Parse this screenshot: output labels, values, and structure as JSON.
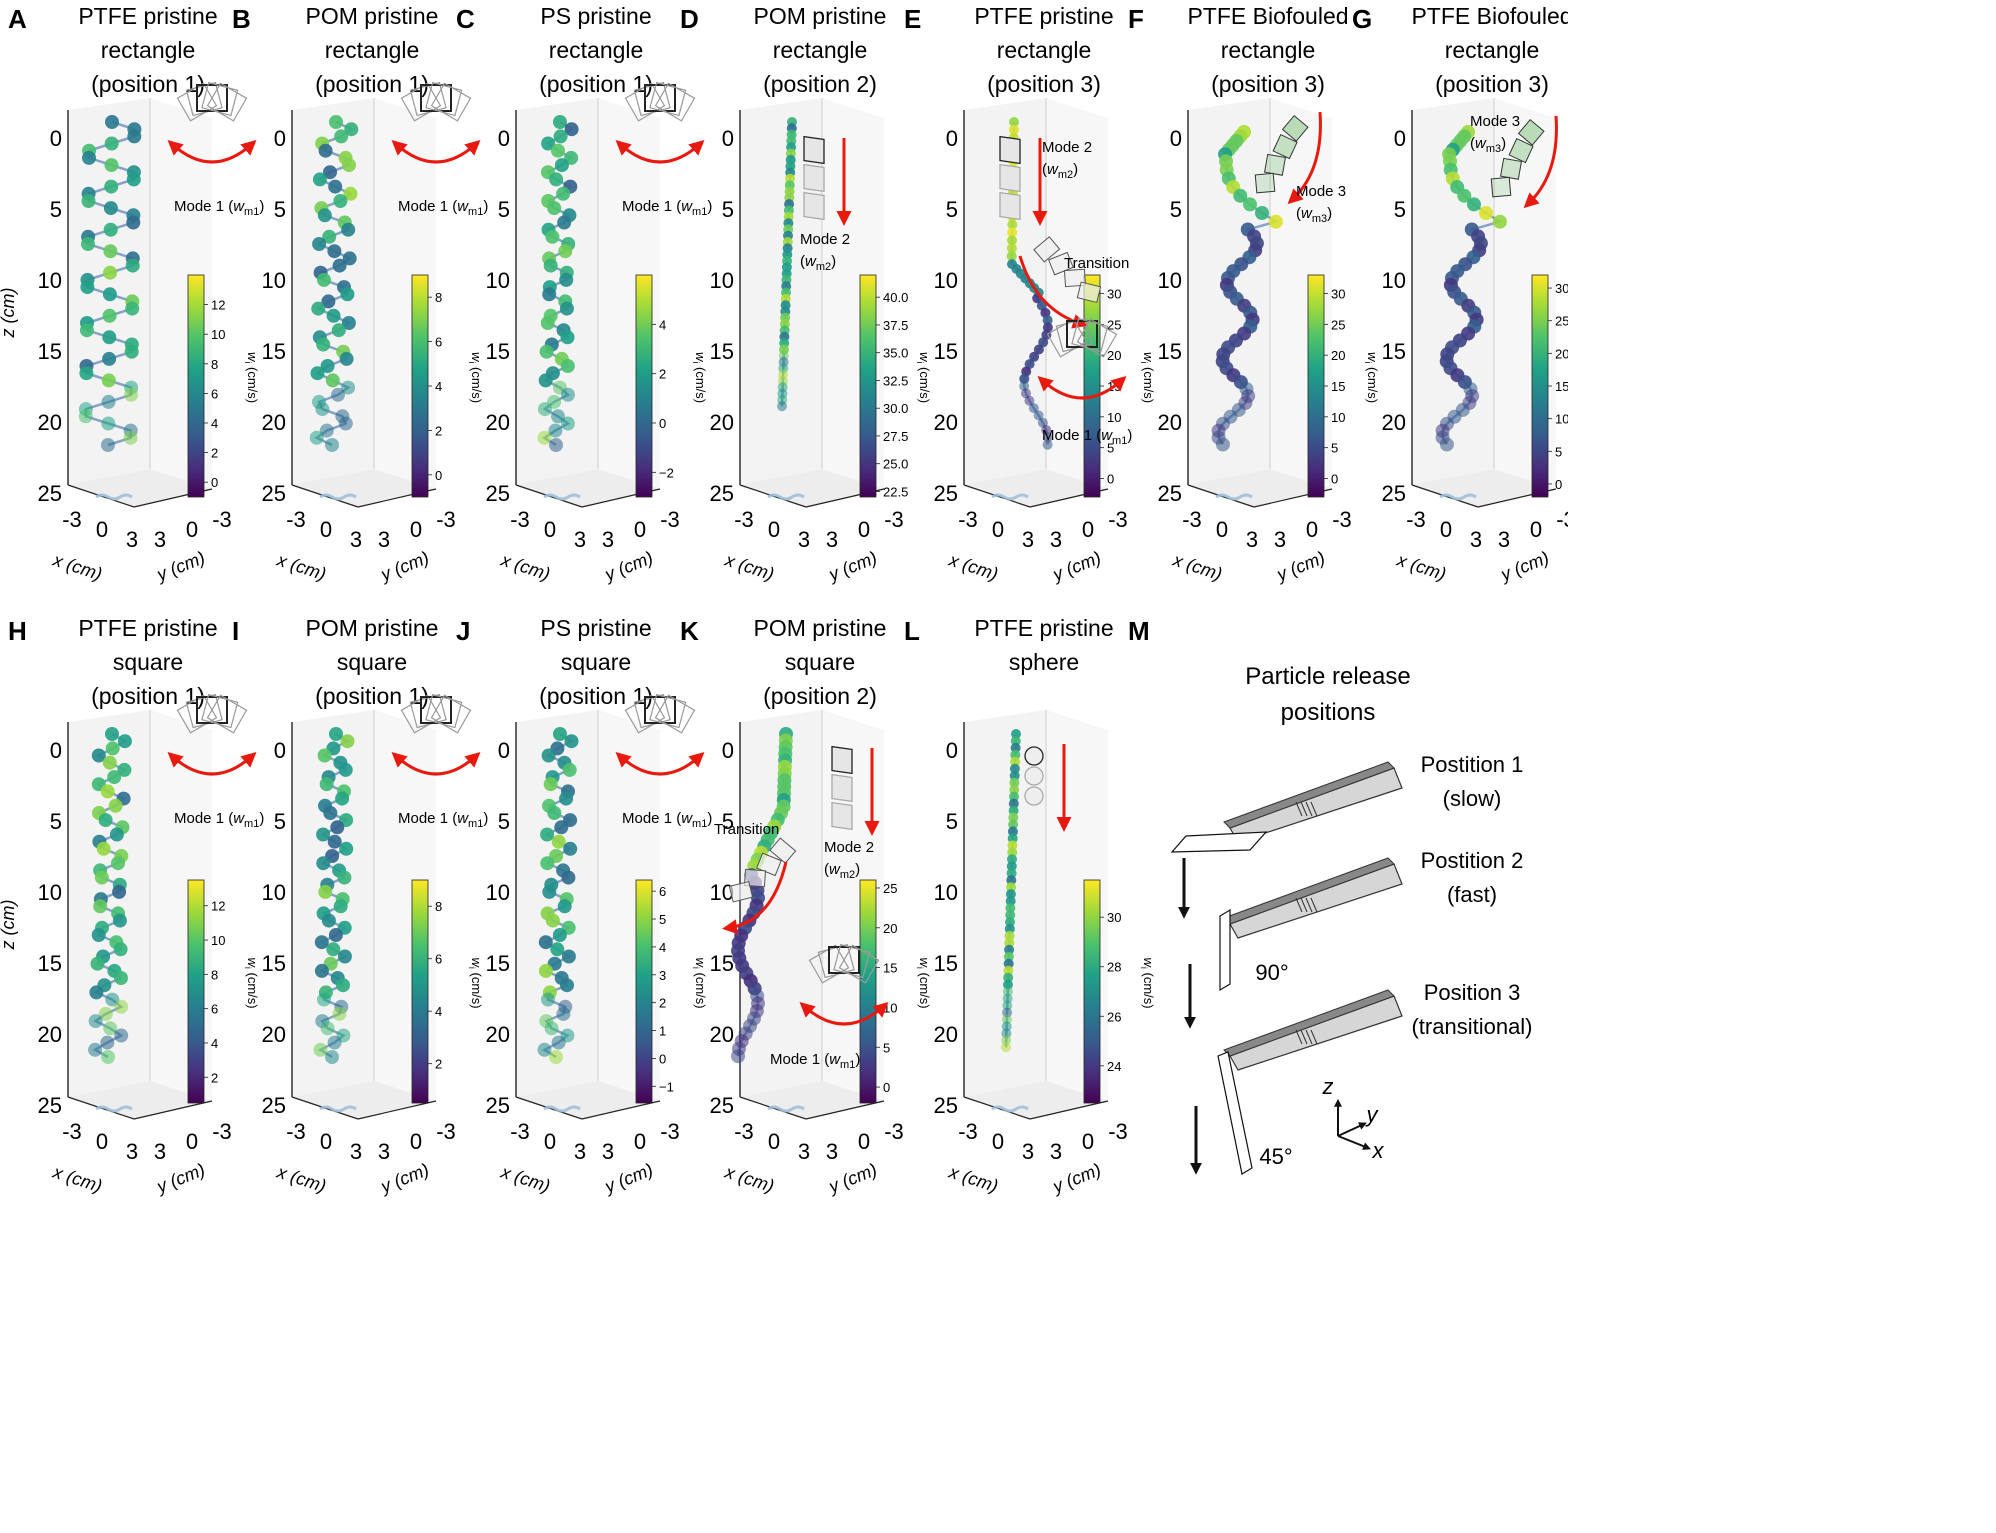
{
  "panels": [
    {
      "id": "A",
      "title": [
        "PTFE pristine",
        "rectangle",
        "(position 1)"
      ],
      "cb_ticks": [
        "12",
        "10",
        "8",
        "6",
        "4",
        "2",
        "0"
      ],
      "cb_min": -1,
      "cb_max": 14,
      "annotations": [
        {
          "text": "Mode 1 (",
          "sym": "w",
          "sub": "m1",
          "close": ")",
          "icon": "swing"
        }
      ],
      "traj": "helix",
      "amp": 1,
      "turns": 7.5
    },
    {
      "id": "B",
      "title": [
        "POM pristine",
        "rectangle",
        "(position 1)"
      ],
      "cb_ticks": [
        "8",
        "6",
        "4",
        "2",
        "0"
      ],
      "cb_min": -1,
      "cb_max": 9,
      "annotations": [
        {
          "text": "Mode 1 (",
          "sym": "w",
          "sub": "m1",
          "close": ")",
          "icon": "swing"
        }
      ],
      "traj": "helix",
      "amp": 0.6,
      "turns": 10
    },
    {
      "id": "C",
      "title": [
        "PS pristine",
        "rectangle",
        "(position 1)"
      ],
      "cb_ticks": [
        "4",
        "2",
        "0",
        "−2"
      ],
      "cb_min": -3,
      "cb_max": 6,
      "annotations": [
        {
          "text": "Mode 1 (",
          "sym": "w",
          "sub": "m1",
          "close": ")",
          "icon": "swing"
        }
      ],
      "traj": "helix",
      "amp": 0.45,
      "turns": 11
    },
    {
      "id": "D",
      "title": [
        "POM pristine",
        "rectangle",
        "(position 2)"
      ],
      "cb_ticks": [
        "40.0",
        "37.5",
        "35.0",
        "32.5",
        "30.0",
        "27.5",
        "25.0",
        "22.5"
      ],
      "cb_min": 22,
      "cb_max": 42,
      "annotations": [
        {
          "text": "Mode 2",
          "sym": "w",
          "sub": "m2",
          "icon": "fall"
        }
      ],
      "traj": "line"
    },
    {
      "id": "E",
      "title": [
        "PTFE pristine",
        "rectangle",
        "(position 3)"
      ],
      "cb_ticks": [
        "30",
        "25",
        "20",
        "15",
        "10",
        "5",
        "0"
      ],
      "cb_min": -3,
      "cb_max": 33,
      "annotations": [
        {
          "text": "Mode 2",
          "sym": "w",
          "sub": "m2",
          "icon": "fall"
        },
        {
          "text": "Transition"
        },
        {
          "text": "Mode 1 (",
          "sym": "w",
          "sub": "m1",
          "close": ")",
          "icon": "swing"
        }
      ],
      "traj": "mixed"
    },
    {
      "id": "F",
      "title": [
        "PTFE Biofouled",
        "rectangle",
        "(position 3)"
      ],
      "cb_ticks": [
        "30",
        "25",
        "20",
        "15",
        "10",
        "5",
        "0"
      ],
      "cb_min": -3,
      "cb_max": 33,
      "annotations": [
        {
          "text": "Mode 3",
          "sym": "w",
          "sub": "m3",
          "icon": "tumble"
        }
      ],
      "traj": "bio"
    },
    {
      "id": "G",
      "title": [
        "PTFE Biofouled",
        "rectangle",
        "(position 3)"
      ],
      "cb_ticks": [
        "30",
        "25",
        "20",
        "15",
        "10",
        "5",
        "0"
      ],
      "cb_min": -2,
      "cb_max": 32,
      "annotations": [
        {
          "text": "Mode 3",
          "sym": "w",
          "sub": "m3",
          "icon": "tumble"
        }
      ],
      "traj": "bio"
    },
    {
      "id": "H",
      "title": [
        "PTFE pristine",
        "square",
        "(position 1)"
      ],
      "cb_ticks": [
        "12",
        "10",
        "8",
        "6",
        "4",
        "2"
      ],
      "cb_min": 0.5,
      "cb_max": 13.5,
      "annotations": [
        {
          "text": "Mode 1 (",
          "sym": "w",
          "sub": "m1",
          "close": ")",
          "icon": "swing"
        }
      ],
      "traj": "helix",
      "amp": 0.5,
      "turns": 11
    },
    {
      "id": "I",
      "title": [
        "POM pristine",
        "square",
        "(position 1)"
      ],
      "cb_ticks": [
        "8",
        "6",
        "4",
        "2"
      ],
      "cb_min": 0.5,
      "cb_max": 9,
      "annotations": [
        {
          "text": "Mode 1 (",
          "sym": "w",
          "sub": "m1",
          "close": ")",
          "icon": "swing"
        }
      ],
      "traj": "helix",
      "amp": 0.45,
      "turns": 12
    },
    {
      "id": "J",
      "title": [
        "PS pristine",
        "square",
        "(position 1)"
      ],
      "cb_ticks": [
        "6",
        "5",
        "4",
        "3",
        "2",
        "1",
        "0",
        "−1"
      ],
      "cb_min": -1.6,
      "cb_max": 6.4,
      "annotations": [
        {
          "text": "Mode 1 (",
          "sym": "w",
          "sub": "m1",
          "close": ")",
          "icon": "swing"
        }
      ],
      "traj": "helix",
      "amp": 0.45,
      "turns": 12
    },
    {
      "id": "K",
      "title": [
        "POM pristine",
        "square",
        "(position 2)"
      ],
      "cb_ticks": [
        "25",
        "20",
        "15",
        "10",
        "5",
        "0"
      ],
      "cb_min": -2,
      "cb_max": 26,
      "annotations": [
        {
          "text": "Transition"
        },
        {
          "text": "Mode 2",
          "sym": "w",
          "sub": "m2",
          "icon": "fall"
        },
        {
          "text": "Mode 1 (",
          "sym": "w",
          "sub": "m1",
          "close": ")",
          "icon": "swing"
        }
      ],
      "traj": "mixedK"
    },
    {
      "id": "L",
      "title": [
        "PTFE pristine",
        "sphere",
        ""
      ],
      "cb_ticks": [
        "30",
        "28",
        "26",
        "24"
      ],
      "cb_min": 22.5,
      "cb_max": 31.5,
      "annotations": [],
      "traj": "line"
    }
  ],
  "axes": {
    "z_ticks": [
      "0",
      "5",
      "10",
      "15",
      "20",
      "25"
    ],
    "z_label": "z (cm)",
    "x_ticks": [
      "-3",
      "0",
      "3"
    ],
    "y_ticks": [
      "3",
      "0",
      "-3"
    ],
    "x_label": "x (cm)",
    "y_label": "y (cm)",
    "cb_label": "w",
    "cb_label_sub": "i",
    "cb_label_unit": " (cm/s)"
  },
  "panelM": {
    "id": "M",
    "heading": [
      "Particle release",
      "positions"
    ],
    "positions": [
      {
        "label": "Postition 1",
        "speed": "(slow)"
      },
      {
        "label": "Postition 2",
        "speed": "(fast)"
      },
      {
        "label": "Position 3",
        "speed": "(transitional)"
      }
    ],
    "angles": [
      "90°",
      "45°"
    ],
    "triad": [
      "z",
      "y",
      "x"
    ]
  },
  "colors": {
    "viridis": [
      "#440154",
      "#46327e",
      "#365c8d",
      "#277f8e",
      "#1fa187",
      "#4ac16d",
      "#a0da39",
      "#fde725"
    ],
    "arrow": "#e8190f",
    "box": "#aaaaaa",
    "pane": "#f3f3f3",
    "proj": "#9bbcd8"
  }
}
